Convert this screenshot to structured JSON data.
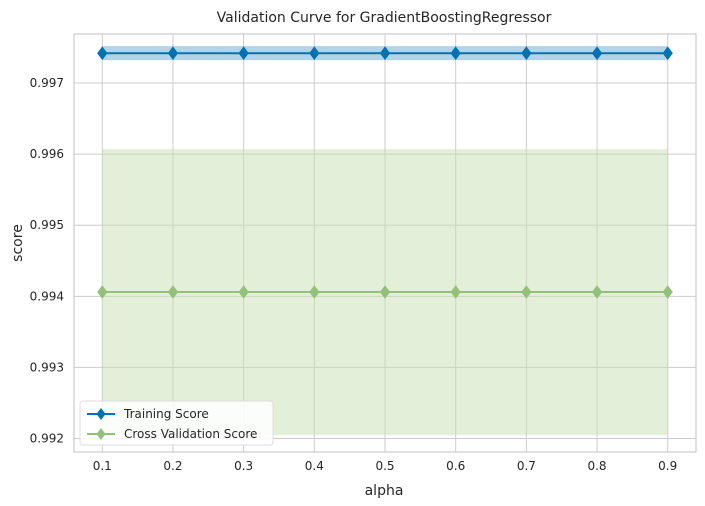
{
  "chart_data": {
    "type": "line",
    "title": "Validation Curve for GradientBoostingRegressor",
    "xlabel": "alpha",
    "ylabel": "score",
    "x": [
      0.1,
      0.2,
      0.3,
      0.4,
      0.5,
      0.6,
      0.7,
      0.8,
      0.9
    ],
    "x_tick_labels": [
      "0.1",
      "0.2",
      "0.3",
      "0.4",
      "0.5",
      "0.6",
      "0.7",
      "0.8",
      "0.9"
    ],
    "y_tick_values": [
      0.992,
      0.993,
      0.994,
      0.995,
      0.996,
      0.997
    ],
    "y_tick_labels": [
      "0.992",
      "0.993",
      "0.994",
      "0.995",
      "0.996",
      "0.997"
    ],
    "xlim": [
      0.06,
      0.94
    ],
    "ylim": [
      0.99181,
      0.99769
    ],
    "grid": true,
    "legend_position": "lower-left",
    "series": [
      {
        "name": "Training Score",
        "color": "#0072b2",
        "band_color": "#0072b2",
        "marker": "diamond",
        "values": [
          0.99742,
          0.99742,
          0.99742,
          0.99742,
          0.99742,
          0.99742,
          0.99742,
          0.99742,
          0.99742
        ],
        "band_lower": [
          0.99732,
          0.99732,
          0.99732,
          0.99732,
          0.99732,
          0.99732,
          0.99732,
          0.99732,
          0.99732
        ],
        "band_upper": [
          0.99752,
          0.99752,
          0.99752,
          0.99752,
          0.99752,
          0.99752,
          0.99752,
          0.99752,
          0.99752
        ]
      },
      {
        "name": "Cross Validation Score",
        "color": "#94c17a",
        "band_color": "#c9dfb3",
        "marker": "diamond",
        "values": [
          0.99406,
          0.99406,
          0.99406,
          0.99406,
          0.99406,
          0.99406,
          0.99406,
          0.99406,
          0.99406
        ],
        "band_lower": [
          0.99205,
          0.99205,
          0.99205,
          0.99205,
          0.99205,
          0.99205,
          0.99205,
          0.99205,
          0.99205
        ],
        "band_upper": [
          0.99607,
          0.99607,
          0.99607,
          0.99607,
          0.99607,
          0.99607,
          0.99607,
          0.99607,
          0.99607
        ]
      }
    ]
  }
}
